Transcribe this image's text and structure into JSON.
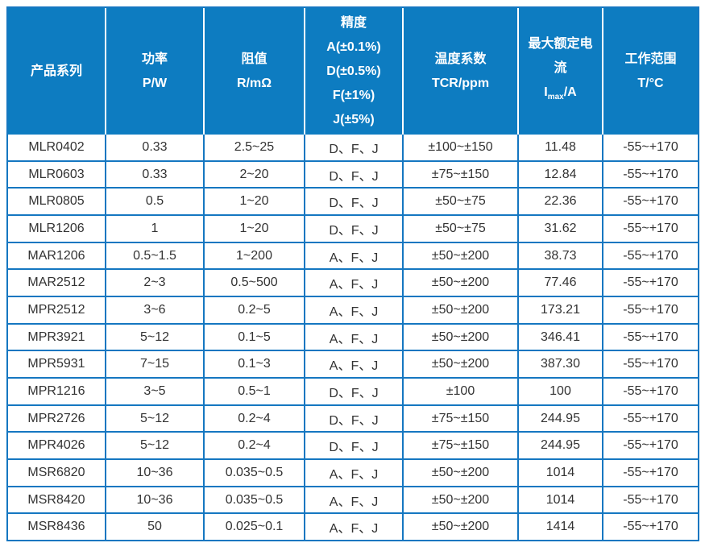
{
  "colors": {
    "header_background": "#0d7cc1",
    "grid_border": "#1577c1",
    "header_text": "#ffffff",
    "body_text": "#333333",
    "header_separator": "#ffffff"
  },
  "table": {
    "columns": [
      {
        "name": "product-series",
        "lines": [
          "产品系列"
        ]
      },
      {
        "name": "power",
        "lines": [
          "功率",
          "P/W"
        ]
      },
      {
        "name": "resistance",
        "lines": [
          "阻值",
          "R/mΩ"
        ]
      },
      {
        "name": "precision",
        "lines": [
          "精度",
          "A(±0.1%)",
          "D(±0.5%)",
          "F(±1%)",
          "J(±5%)"
        ]
      },
      {
        "name": "temperature-coefficient",
        "lines": [
          "温度系数",
          "TCR/ppm"
        ]
      },
      {
        "name": "max-rated-current",
        "lines": [
          "最大额定电",
          "流",
          {
            "pre": "I",
            "sub": "max",
            "post": "/A"
          }
        ]
      },
      {
        "name": "working-range",
        "lines": [
          "工作范围",
          "T/°C"
        ]
      }
    ],
    "rows": [
      [
        "MLR0402",
        "0.33",
        "2.5~25",
        "D、F、J",
        "±100~±150",
        "11.48",
        "-55~+170"
      ],
      [
        "MLR0603",
        "0.33",
        "2~20",
        "D、F、J",
        "±75~±150",
        "12.84",
        "-55~+170"
      ],
      [
        "MLR0805",
        "0.5",
        "1~20",
        "D、F、J",
        "±50~±75",
        "22.36",
        "-55~+170"
      ],
      [
        "MLR1206",
        "1",
        "1~20",
        "D、F、J",
        "±50~±75",
        "31.62",
        "-55~+170"
      ],
      [
        "MAR1206",
        "0.5~1.5",
        "1~200",
        "A、F、J",
        "±50~±200",
        "38.73",
        "-55~+170"
      ],
      [
        "MAR2512",
        "2~3",
        "0.5~500",
        "A、F、J",
        "±50~±200",
        "77.46",
        "-55~+170"
      ],
      [
        "MPR2512",
        "3~6",
        "0.2~5",
        "A、F、J",
        "±50~±200",
        "173.21",
        "-55~+170"
      ],
      [
        "MPR3921",
        "5~12",
        "0.1~5",
        "A、F、J",
        "±50~±200",
        "346.41",
        "-55~+170"
      ],
      [
        "MPR5931",
        "7~15",
        "0.1~3",
        "A、F、J",
        "±50~±200",
        "387.30",
        "-55~+170"
      ],
      [
        "MPR1216",
        "3~5",
        "0.5~1",
        "D、F、J",
        "±100",
        "100",
        "-55~+170"
      ],
      [
        "MPR2726",
        "5~12",
        "0.2~4",
        "D、F、J",
        "±75~±150",
        "244.95",
        "-55~+170"
      ],
      [
        "MPR4026",
        "5~12",
        "0.2~4",
        "D、F、J",
        "±75~±150",
        "244.95",
        "-55~+170"
      ],
      [
        "MSR6820",
        "10~36",
        "0.035~0.5",
        "A、F、J",
        "±50~±200",
        "1014",
        "-55~+170"
      ],
      [
        "MSR8420",
        "10~36",
        "0.035~0.5",
        "A、F、J",
        "±50~±200",
        "1014",
        "-55~+170"
      ],
      [
        "MSR8436",
        "50",
        "0.025~0.1",
        "A、F、J",
        "±50~±200",
        "1414",
        "-55~+170"
      ]
    ]
  }
}
